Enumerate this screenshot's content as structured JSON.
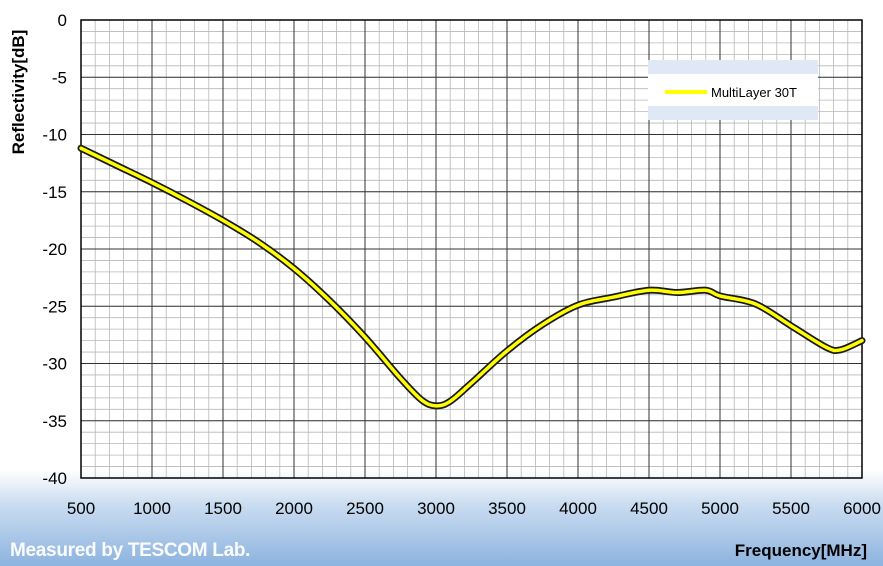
{
  "chart_data": {
    "type": "line",
    "title": "",
    "xlabel": "Frequency[MHz]",
    "ylabel": "Reflectivity[dB]",
    "xlim": [
      500,
      6000
    ],
    "ylim": [
      -40,
      0
    ],
    "xticks": [
      500,
      1000,
      1500,
      2000,
      2500,
      3000,
      3500,
      4000,
      4500,
      5000,
      5500,
      6000
    ],
    "yticks": [
      0,
      -5,
      -10,
      -15,
      -20,
      -25,
      -30,
      -35,
      -40
    ],
    "grid": "major and minor",
    "legend_position": "top-right",
    "series": [
      {
        "name": "MultiLayer 30T",
        "color": "#ffff00",
        "x": [
          500,
          750,
          1000,
          1250,
          1500,
          1750,
          2000,
          2250,
          2500,
          2750,
          2900,
          3000,
          3100,
          3250,
          3500,
          3750,
          4000,
          4250,
          4500,
          4700,
          4900,
          5000,
          5250,
          5500,
          5750,
          5850,
          6000
        ],
        "y": [
          -11.2,
          -12.7,
          -14.2,
          -15.8,
          -17.5,
          -19.4,
          -21.7,
          -24.5,
          -27.7,
          -31.3,
          -33.2,
          -33.7,
          -33.3,
          -31.7,
          -28.9,
          -26.6,
          -24.9,
          -24.2,
          -23.6,
          -23.8,
          -23.6,
          -24.1,
          -24.8,
          -26.7,
          -28.6,
          -28.8,
          -28.0
        ]
      }
    ]
  },
  "legend_label": "MultiLayer 30T",
  "watermark": "Measured by TESCOM Lab.",
  "xlabel_text": "Frequency[MHz]",
  "ylabel_text": "Reflectivity[dB]"
}
